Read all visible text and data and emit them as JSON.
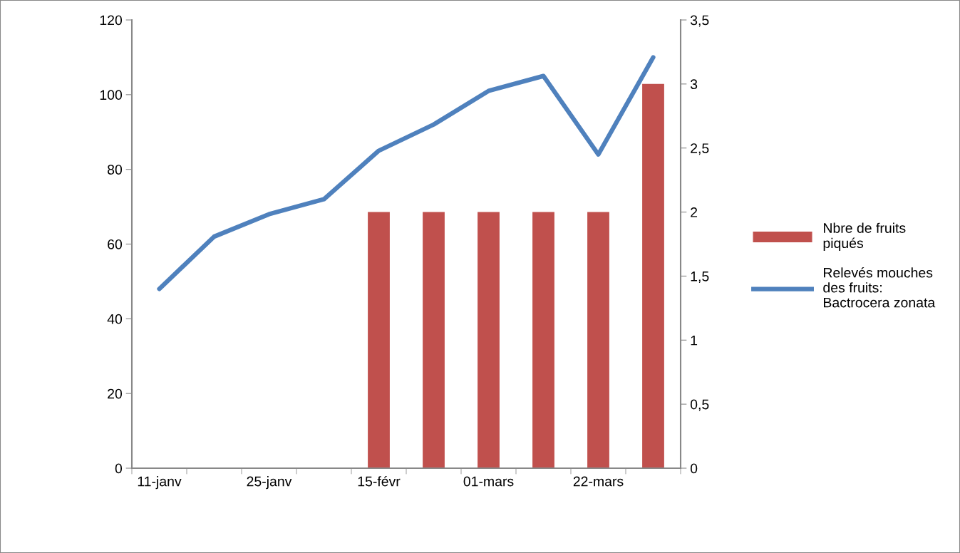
{
  "chart_data": {
    "type": "bar",
    "categories": [
      "11-janv",
      null,
      "25-janv",
      null,
      "15-févr",
      null,
      "01-mars",
      null,
      "22-mars",
      null
    ],
    "series": [
      {
        "name": "Nbre de fruits piqués",
        "axis": "y2",
        "color": "#c0504d",
        "values": [
          null,
          null,
          null,
          null,
          2,
          2,
          2,
          2,
          2,
          3
        ]
      },
      {
        "name": "Relevés mouches des fruits: Bactrocera zonata",
        "type": "line",
        "axis": "y",
        "color": "#4f81bd",
        "values": [
          48,
          62,
          68,
          72,
          85,
          92,
          101,
          105,
          84,
          110
        ]
      }
    ],
    "ylim": [
      0,
      120
    ],
    "yticks": [
      0,
      20,
      40,
      60,
      80,
      100,
      120
    ],
    "y2lim": [
      0,
      3.5
    ],
    "y2ticks": [
      0,
      {
        "value": 0.5,
        "label": "0,5"
      },
      1,
      {
        "value": 1.5,
        "label": "1,5"
      },
      2,
      {
        "value": 2.5,
        "label": "2,5"
      },
      3,
      {
        "value": 3.5,
        "label": "3,5"
      }
    ],
    "grid": false,
    "legend": "right",
    "marker": "none",
    "line_style": "solid"
  }
}
